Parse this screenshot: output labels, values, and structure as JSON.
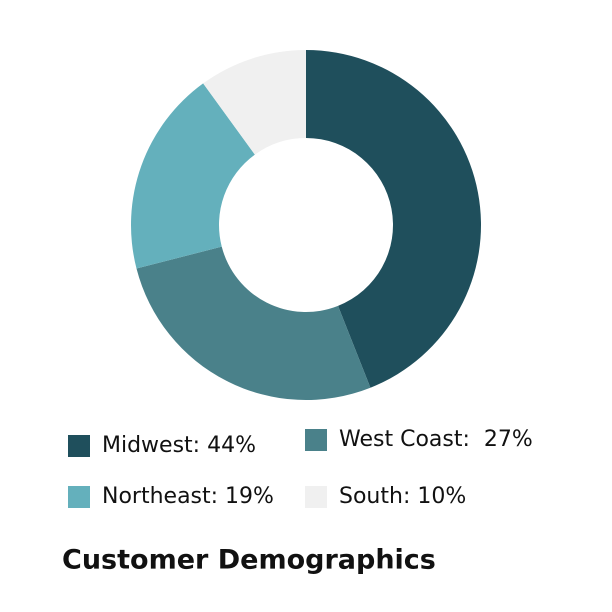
{
  "chart_data": {
    "type": "donut",
    "title": "Customer Demographics",
    "categories": [
      "Midwest: 44%",
      "West Coast:  27%",
      "Northeast: 19%",
      "South: 10%"
    ],
    "values": [
      44,
      27,
      19,
      10
    ],
    "colors": [
      "#1f4f5c",
      "#4a818a",
      "#64b0bc",
      "#f0f0f0"
    ]
  }
}
